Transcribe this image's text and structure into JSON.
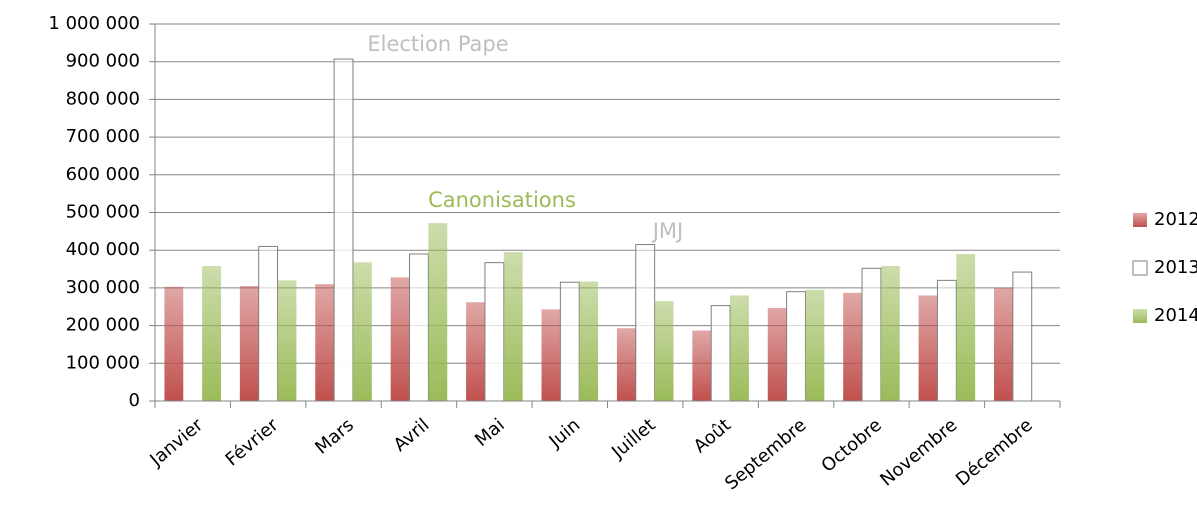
{
  "chart_data": {
    "type": "bar",
    "categories": [
      "Janvier",
      "Février",
      "Mars",
      "Avril",
      "Mai",
      "Juin",
      "Juillet",
      "Août",
      "Septembre",
      "Octobre",
      "Novembre",
      "Décembre"
    ],
    "series": [
      {
        "name": "2012",
        "color": "#c0504d",
        "values": [
          303000,
          305000,
          310000,
          328000,
          262000,
          243000,
          193000,
          187000,
          247000,
          287000,
          280000,
          300000
        ]
      },
      {
        "name": "2013",
        "color": "#ffffff",
        "values": [
          null,
          410000,
          907000,
          390000,
          367000,
          315000,
          415000,
          253000,
          290000,
          352000,
          320000,
          342000
        ]
      },
      {
        "name": "2014",
        "color": "#9bbb59",
        "values": [
          358000,
          320000,
          368000,
          472000,
          395000,
          317000,
          265000,
          280000,
          295000,
          358000,
          390000,
          null
        ]
      }
    ],
    "annotations": [
      {
        "text": "Election Pape",
        "color": "#bfbfbf"
      },
      {
        "text": "Canonisations",
        "color": "#9bbb59"
      },
      {
        "text": "JMJ",
        "color": "#bfbfbf"
      }
    ],
    "ylim": [
      0,
      1000000
    ],
    "yticks": [
      0,
      {
        "value": 100000,
        "label": "100 000"
      },
      {
        "value": 200000,
        "label": "200 000"
      },
      {
        "value": 300000,
        "label": "300 000"
      },
      {
        "value": 400000,
        "label": "400 000"
      },
      {
        "value": 500000,
        "label": "500 000"
      },
      {
        "value": 600000,
        "label": "600 000"
      },
      {
        "value": 700000,
        "label": "700 000"
      },
      {
        "value": 800000,
        "label": "800 000"
      },
      {
        "value": 900000,
        "label": "900 000"
      },
      {
        "value": 1000000,
        "label": "1 000 000"
      }
    ],
    "grid": true,
    "legend": "right"
  }
}
